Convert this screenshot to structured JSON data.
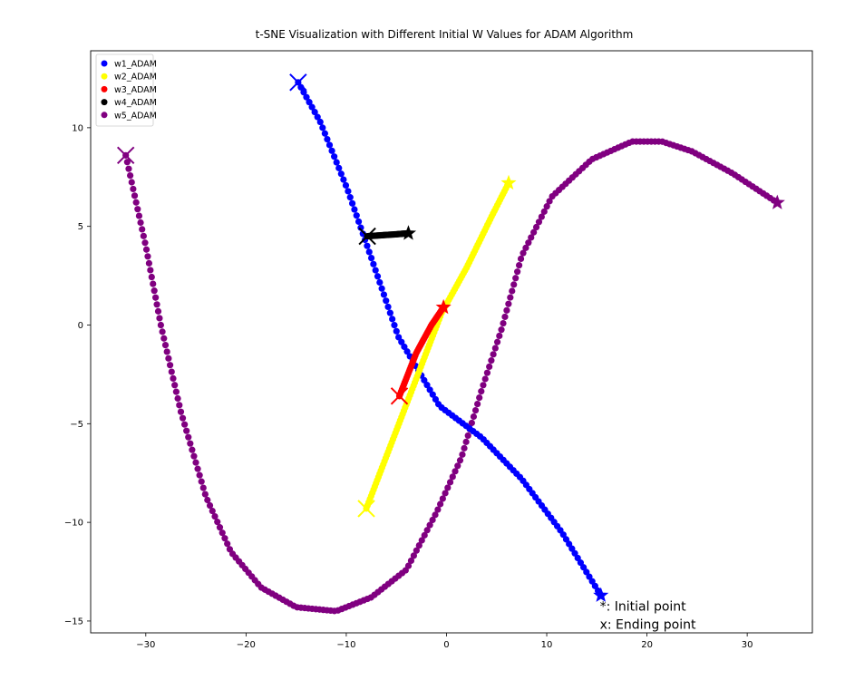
{
  "chart_data": {
    "type": "scatter",
    "title": "t-SNE Visualization with Different Initial W Values for ADAM Algorithm",
    "xlabel": "",
    "ylabel": "",
    "xlim": [
      -35.5,
      36.5
    ],
    "ylim": [
      -15.6,
      13.9
    ],
    "xticks": [
      -30,
      -20,
      -10,
      0,
      10,
      20,
      30
    ],
    "yticks": [
      -15,
      -10,
      -5,
      0,
      5,
      10
    ],
    "grid": false,
    "legend_position": "top-left",
    "series": [
      {
        "name": "w1_ADAM",
        "color": "#0000ff",
        "n_points": 110,
        "path": [
          [
            -14.8,
            12.3
          ],
          [
            -12.6,
            10.3
          ],
          [
            -9.9,
            6.9
          ],
          [
            -7.5,
            3.4
          ],
          [
            -4.8,
            -0.6
          ],
          [
            -0.7,
            -4.1
          ],
          [
            3.5,
            -5.7
          ],
          [
            7.5,
            -7.8
          ],
          [
            11.5,
            -10.5
          ],
          [
            15.4,
            -13.7
          ]
        ]
      },
      {
        "name": "w2_ADAM",
        "color": "#ffff00",
        "n_points": 110,
        "path": [
          [
            -8.0,
            -9.3
          ],
          [
            -5.5,
            -6.0
          ],
          [
            -3.0,
            -2.7
          ],
          [
            -0.5,
            0.6
          ],
          [
            2.0,
            2.9
          ],
          [
            4.5,
            5.5
          ],
          [
            6.2,
            7.2
          ]
        ]
      },
      {
        "name": "w3_ADAM",
        "color": "#ff0000",
        "n_points": 45,
        "path": [
          [
            -4.7,
            -3.6
          ],
          [
            -3.0,
            -1.4
          ],
          [
            -1.5,
            0.0
          ],
          [
            -0.3,
            0.9
          ]
        ]
      },
      {
        "name": "w4_ADAM",
        "color": "#000000",
        "n_points": 40,
        "path": [
          [
            -7.9,
            4.5
          ],
          [
            -6.5,
            4.55
          ],
          [
            -5.0,
            4.6
          ],
          [
            -3.8,
            4.65
          ]
        ]
      },
      {
        "name": "w5_ADAM",
        "color": "#800080",
        "n_points": 240,
        "path": [
          [
            -32.0,
            8.6
          ],
          [
            -30.0,
            4.0
          ],
          [
            -28.5,
            0.0
          ],
          [
            -26.5,
            -4.4
          ],
          [
            -24.0,
            -8.7
          ],
          [
            -21.5,
            -11.5
          ],
          [
            -18.5,
            -13.3
          ],
          [
            -15.0,
            -14.3
          ],
          [
            -11.0,
            -14.5
          ],
          [
            -7.5,
            -13.8
          ],
          [
            -4.0,
            -12.4
          ],
          [
            -1.0,
            -9.5
          ],
          [
            1.5,
            -6.7
          ],
          [
            3.5,
            -3.3
          ],
          [
            5.5,
            -0.2
          ],
          [
            7.5,
            3.5
          ],
          [
            10.5,
            6.5
          ],
          [
            14.5,
            8.4
          ],
          [
            18.5,
            9.3
          ],
          [
            21.5,
            9.3
          ],
          [
            24.5,
            8.8
          ],
          [
            28.5,
            7.7
          ],
          [
            33.0,
            6.2
          ]
        ]
      }
    ],
    "markers_note": "star marks the initial point of each series, x marks the ending point",
    "annotations": [
      {
        "text": "*: Initial point",
        "x": 15.3,
        "y": -14.3
      },
      {
        "text": "x: Ending point",
        "x": 15.3,
        "y": -15.2
      }
    ]
  }
}
